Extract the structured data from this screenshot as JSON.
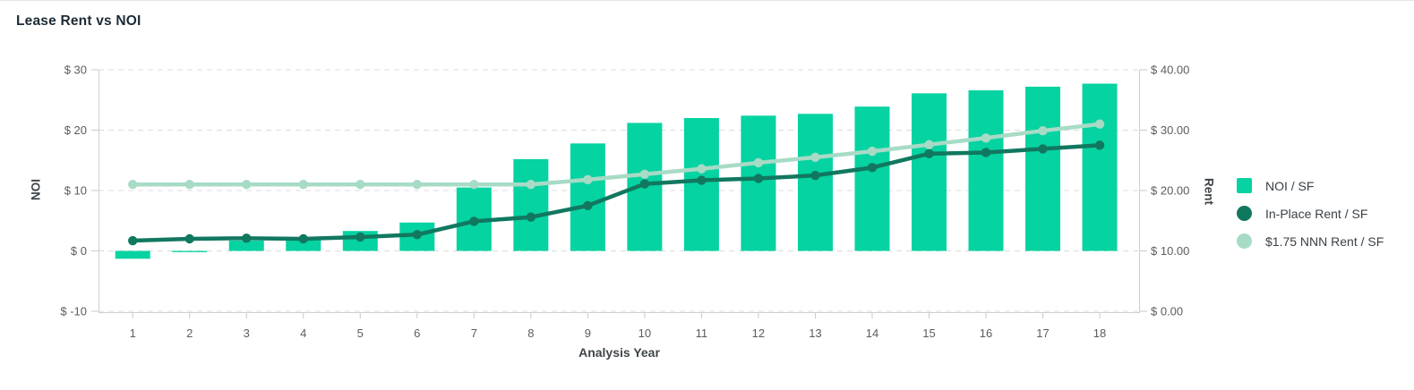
{
  "chart_data": {
    "type": "combo-bar-line",
    "title": "Lease Rent vs NOI",
    "grid": "dashed-horizontal",
    "legend_position": "right",
    "x_axis": {
      "title": "Analysis Year",
      "categories": [
        "1",
        "2",
        "3",
        "4",
        "5",
        "6",
        "7",
        "8",
        "9",
        "10",
        "11",
        "12",
        "13",
        "14",
        "15",
        "16",
        "17",
        "18"
      ]
    },
    "y_left": {
      "title": "NOI",
      "min": -10,
      "max": 30,
      "tick_values": [
        30,
        20,
        10,
        0,
        -10
      ],
      "tick_labels": [
        "$ 30",
        "$ 20",
        "$ 10",
        "$ 0",
        "$ -10"
      ]
    },
    "y_right": {
      "title": "Rent",
      "min": 0,
      "max": 40,
      "tick_values": [
        40,
        30,
        20,
        10,
        0
      ],
      "tick_labels": [
        "$ 40.00",
        "$ 30.00",
        "$ 20.00",
        "$ 10.00",
        "$ 0.00"
      ]
    },
    "series": [
      {
        "name": "NOI / SF",
        "type": "bar",
        "marker": "square",
        "axis": "left",
        "color": "#05d3a1",
        "values": [
          -1.3,
          -0.2,
          1.7,
          1.8,
          3.3,
          4.7,
          10.5,
          15.2,
          17.8,
          21.2,
          22.0,
          22.4,
          22.7,
          23.9,
          26.1,
          26.6,
          27.2,
          27.7
        ]
      },
      {
        "name": "In-Place Rent / SF",
        "type": "line",
        "marker": "circle",
        "axis": "right",
        "color": "#117860",
        "values": [
          11.7,
          12.0,
          12.1,
          12.0,
          12.3,
          12.7,
          14.9,
          15.6,
          17.5,
          21.1,
          21.7,
          22.0,
          22.5,
          23.8,
          26.1,
          26.3,
          26.9,
          27.5
        ]
      },
      {
        "name": "$1.75 NNN Rent / SF",
        "type": "line",
        "marker": "circle",
        "axis": "right",
        "color": "#a7dbc6",
        "values": [
          21.0,
          21.0,
          21.0,
          21.0,
          21.0,
          21.0,
          21.0,
          21.0,
          21.8,
          22.7,
          23.6,
          24.6,
          25.5,
          26.5,
          27.6,
          28.7,
          29.9,
          31.0
        ]
      }
    ]
  }
}
